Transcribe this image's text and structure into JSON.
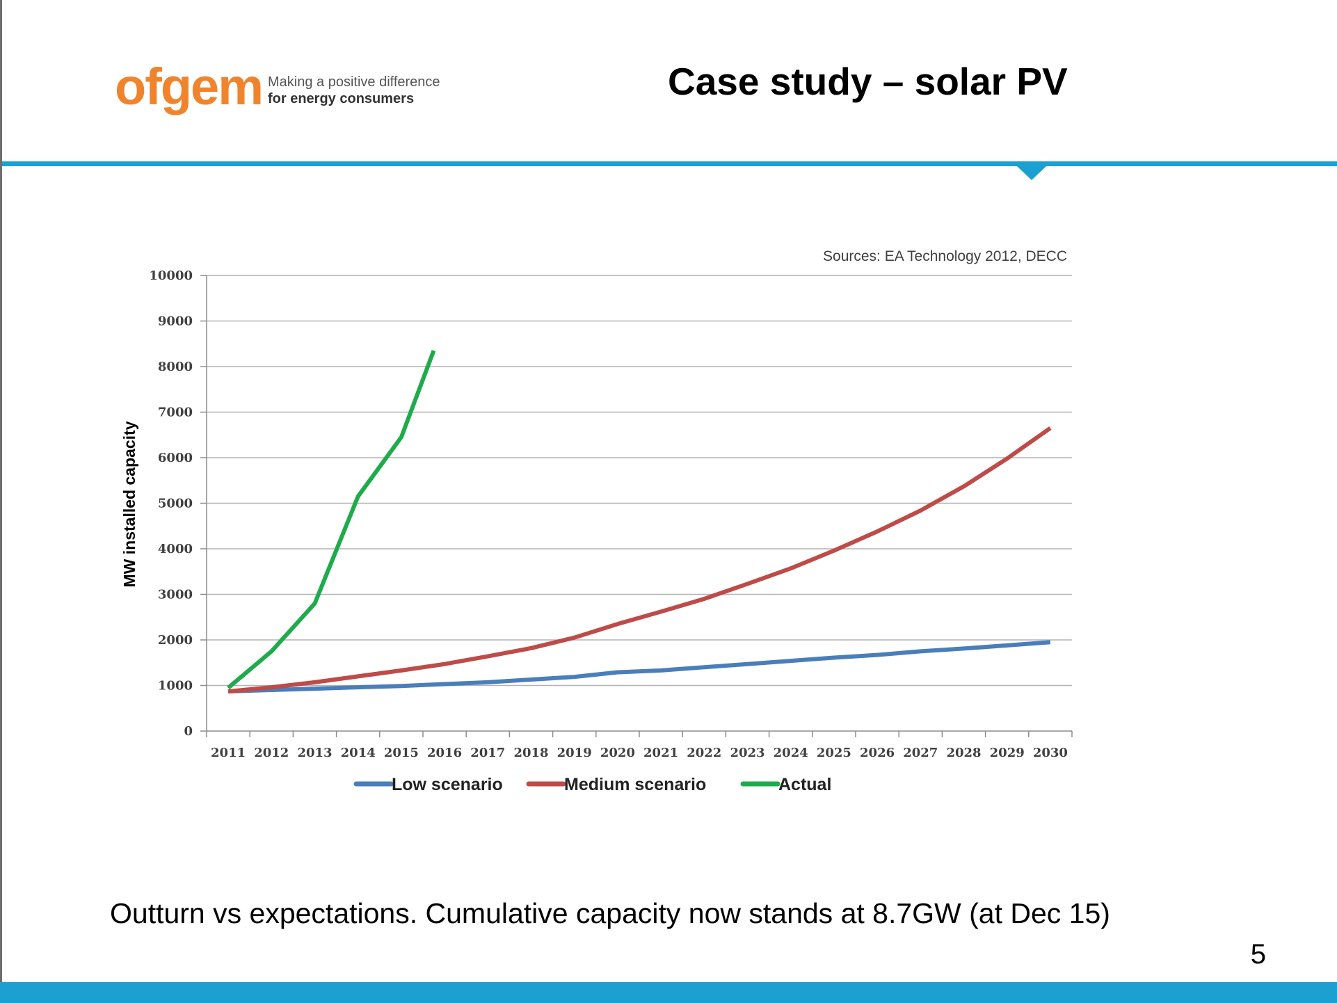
{
  "header": {
    "logo_word": "ofgem",
    "logo_tagline_1": "Making a positive difference",
    "logo_tagline_2": "for energy consumers",
    "title": "Case study – solar PV"
  },
  "footer": {
    "caption": "Outturn vs expectations. Cumulative capacity now stands at 8.7GW (at Dec 15)",
    "page_number": "5"
  },
  "colors": {
    "accent_blue": "#1c9fd1",
    "logo_orange": "#f0842c"
  },
  "chart_data": {
    "type": "line",
    "title": "",
    "source_note": "Sources: EA Technology 2012, DECC",
    "xlabel": "",
    "ylabel": "MW installed capacity",
    "ylim": [
      0,
      10000
    ],
    "yticks": [
      0,
      1000,
      2000,
      3000,
      4000,
      5000,
      6000,
      7000,
      8000,
      9000,
      10000
    ],
    "categories": [
      "2011",
      "2012",
      "2013",
      "2014",
      "2015",
      "2016",
      "2017",
      "2018",
      "2019",
      "2020",
      "2021",
      "2022",
      "2023",
      "2024",
      "2025",
      "2026",
      "2027",
      "2028",
      "2029",
      "2030"
    ],
    "grid": true,
    "legend_position": "bottom",
    "series": [
      {
        "name": "Low scenario",
        "color": "#4a7ebb",
        "x": [
          2011,
          2012,
          2013,
          2014,
          2015,
          2016,
          2017,
          2018,
          2019,
          2020,
          2021,
          2022,
          2023,
          2024,
          2025,
          2026,
          2027,
          2028,
          2029,
          2030
        ],
        "values": [
          870,
          900,
          930,
          960,
          990,
          1030,
          1070,
          1130,
          1190,
          1290,
          1330,
          1400,
          1470,
          1540,
          1610,
          1670,
          1750,
          1810,
          1880,
          1950
        ]
      },
      {
        "name": "Medium scenario",
        "color": "#be4b48",
        "x": [
          2011,
          2012,
          2013,
          2014,
          2015,
          2016,
          2017,
          2018,
          2019,
          2020,
          2021,
          2022,
          2023,
          2024,
          2025,
          2026,
          2027,
          2028,
          2029,
          2030
        ],
        "values": [
          870,
          960,
          1070,
          1200,
          1330,
          1470,
          1640,
          1820,
          2050,
          2350,
          2620,
          2900,
          3230,
          3570,
          3960,
          4380,
          4840,
          5370,
          5980,
          6650
        ]
      },
      {
        "name": "Actual",
        "color": "#1eab4b",
        "x": [
          2011,
          2012,
          2013,
          2014,
          2015,
          2015.75
        ],
        "values": [
          950,
          1750,
          2800,
          5150,
          6450,
          8350
        ]
      }
    ]
  }
}
